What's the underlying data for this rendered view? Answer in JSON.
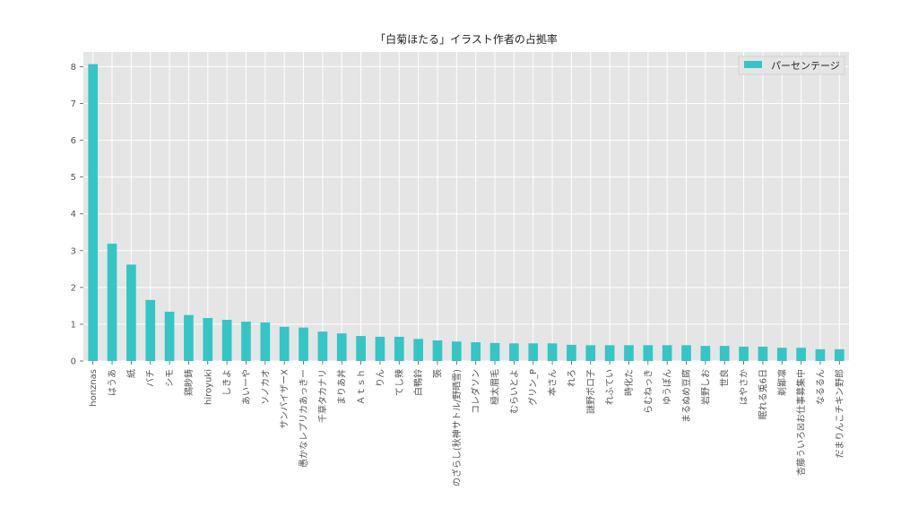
{
  "chart_data": {
    "type": "bar",
    "title": "「白菊ほたる」イラスト作者の占拠率",
    "xlabel": "",
    "ylabel": "",
    "ylim": [
      0,
      8.4
    ],
    "yticks": [
      0,
      1,
      2,
      3,
      4,
      5,
      6,
      7,
      8
    ],
    "grid": true,
    "legend_position": "top-right",
    "colors": {
      "bar": "#33c6c6",
      "background": "#e5e5e5",
      "grid": "#ffffff"
    },
    "categories": [
      "honznas",
      "はうあ",
      "紙",
      "バチ",
      "シモ",
      "鶏眇鋳",
      "hiroyuki",
      "しきよ",
      "あいーや",
      "ソノカオ",
      "サンバイザーX",
      "愚かなレプリカあっきー",
      "千草タカナリ",
      "まりあ丼",
      "Ａｔｓｈ",
      "りん",
      "てし辣",
      "白鴨鈴",
      "張",
      "のざらし(秋神サトル/野晒雪)",
      "コレダソン",
      "極太眉毛",
      "むらいとよ",
      "グリン_P",
      "本さん",
      "れろ",
      "謎野ボロ子",
      "れふてい",
      "時化た",
      "らむねっき",
      "ゆうぽん",
      "まるぬめ豆腐",
      "岩野しお",
      "世良",
      "はやさか",
      "眠れる兎6日",
      "剃鄙凛",
      "杏藤ういろ☒お仕事募集中",
      "なるるん",
      "だまりんこチキン野郎"
    ],
    "series": [
      {
        "name": "パーセンテージ",
        "values": [
          8.07,
          3.19,
          2.62,
          1.66,
          1.34,
          1.25,
          1.17,
          1.12,
          1.07,
          1.05,
          0.93,
          0.91,
          0.8,
          0.75,
          0.68,
          0.66,
          0.66,
          0.6,
          0.56,
          0.53,
          0.51,
          0.49,
          0.48,
          0.48,
          0.48,
          0.44,
          0.43,
          0.43,
          0.43,
          0.43,
          0.43,
          0.43,
          0.41,
          0.41,
          0.39,
          0.39,
          0.36,
          0.36,
          0.32,
          0.32
        ]
      }
    ]
  }
}
